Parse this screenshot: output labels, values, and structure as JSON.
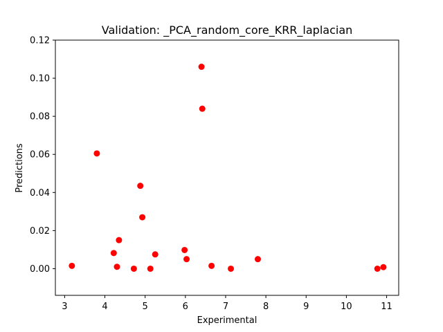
{
  "chart_data": {
    "type": "scatter",
    "title": "Validation: _PCA_random_core_KRR_laplacian",
    "xlabel": "Experimental",
    "ylabel": "Predictions",
    "xlim": [
      2.77,
      11.3
    ],
    "ylim": [
      -0.014,
      0.12
    ],
    "xticks": [
      3,
      4,
      5,
      6,
      7,
      8,
      9,
      10,
      11
    ],
    "yticks": [
      0.0,
      0.02,
      0.04,
      0.06,
      0.08,
      0.1,
      0.12
    ],
    "ytick_labels": [
      "0.00",
      "0.02",
      "0.04",
      "0.06",
      "0.08",
      "0.10",
      "0.12"
    ],
    "grid": false,
    "marker_color": "#ff0000",
    "points": [
      {
        "x": 3.18,
        "y": 0.0015
      },
      {
        "x": 3.8,
        "y": 0.0605
      },
      {
        "x": 4.22,
        "y": 0.0082
      },
      {
        "x": 4.3,
        "y": 0.001
      },
      {
        "x": 4.35,
        "y": 0.015
      },
      {
        "x": 4.72,
        "y": 0.0
      },
      {
        "x": 4.88,
        "y": 0.0435
      },
      {
        "x": 4.93,
        "y": 0.027
      },
      {
        "x": 5.13,
        "y": 0.0
      },
      {
        "x": 5.25,
        "y": 0.0075
      },
      {
        "x": 5.98,
        "y": 0.0098
      },
      {
        "x": 6.03,
        "y": 0.005
      },
      {
        "x": 6.4,
        "y": 0.106
      },
      {
        "x": 6.42,
        "y": 0.084
      },
      {
        "x": 6.65,
        "y": 0.0015
      },
      {
        "x": 7.13,
        "y": 0.0
      },
      {
        "x": 7.8,
        "y": 0.005
      },
      {
        "x": 10.77,
        "y": 0.0
      },
      {
        "x": 10.92,
        "y": 0.0008
      }
    ]
  }
}
